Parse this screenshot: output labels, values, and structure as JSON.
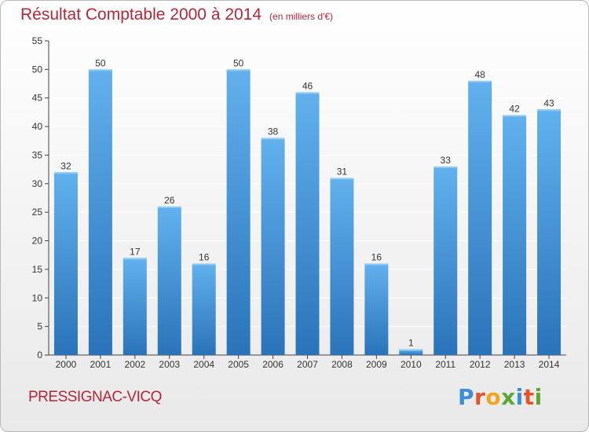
{
  "header": {
    "title": "Résultat Comptable 2000 à 2014",
    "unit_note": "(en milliers d'€)"
  },
  "footer": {
    "commune": "PRESSIGNAC-VICQ",
    "logo_text": "Proxiti"
  },
  "colors": {
    "bar": "#3f8fd6",
    "title": "#b3263a"
  },
  "chart_data": {
    "type": "bar",
    "title": "Résultat Comptable 2000 à 2014",
    "xlabel": "",
    "ylabel": "",
    "categories": [
      "2000",
      "2001",
      "2002",
      "2003",
      "2004",
      "2005",
      "2006",
      "2007",
      "2008",
      "2009",
      "2010",
      "2011",
      "2012",
      "2013",
      "2014"
    ],
    "values": [
      32,
      50,
      17,
      26,
      16,
      50,
      38,
      46,
      31,
      16,
      1,
      33,
      48,
      42,
      43
    ],
    "ylim": [
      0,
      55
    ],
    "yticks": [
      0,
      5,
      10,
      15,
      20,
      25,
      30,
      35,
      40,
      45,
      50,
      55
    ],
    "grid": true,
    "data_labels": true
  }
}
